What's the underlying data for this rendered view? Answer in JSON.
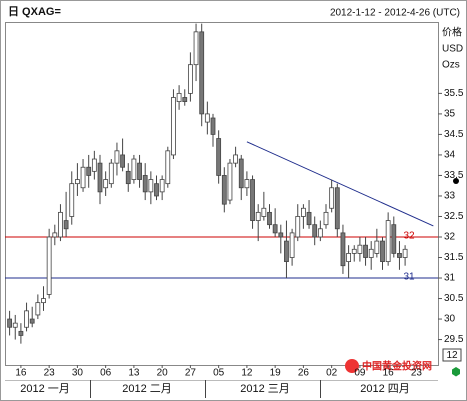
{
  "chart_data": {
    "type": "candlestick",
    "title": "日 QXAG=",
    "date_range": "2012-1-12 - 2012-4-26 (UTC)",
    "y_label": [
      "价格",
      "USD",
      "Ozs"
    ],
    "watermark": "中国黄金投资网",
    "zoom_label": "12",
    "x": [
      "2012-01-12",
      "2012-01-13",
      "2012-01-16",
      "2012-01-17",
      "2012-01-18",
      "2012-01-19",
      "2012-01-20",
      "2012-01-23",
      "2012-01-24",
      "2012-01-25",
      "2012-01-26",
      "2012-01-27",
      "2012-01-30",
      "2012-01-31",
      "2012-02-01",
      "2012-02-02",
      "2012-02-03",
      "2012-02-06",
      "2012-02-07",
      "2012-02-08",
      "2012-02-09",
      "2012-02-10",
      "2012-02-13",
      "2012-02-14",
      "2012-02-15",
      "2012-02-16",
      "2012-02-17",
      "2012-02-20",
      "2012-02-21",
      "2012-02-22",
      "2012-02-23",
      "2012-02-24",
      "2012-02-27",
      "2012-02-28",
      "2012-02-29",
      "2012-03-01",
      "2012-03-02",
      "2012-03-05",
      "2012-03-06",
      "2012-03-07",
      "2012-03-08",
      "2012-03-09",
      "2012-03-12",
      "2012-03-13",
      "2012-03-14",
      "2012-03-15",
      "2012-03-16",
      "2012-03-19",
      "2012-03-20",
      "2012-03-21",
      "2012-03-22",
      "2012-03-23",
      "2012-03-26",
      "2012-03-27",
      "2012-03-28",
      "2012-03-29",
      "2012-03-30",
      "2012-04-02",
      "2012-04-03",
      "2012-04-04",
      "2012-04-05",
      "2012-04-06",
      "2012-04-09",
      "2012-04-10",
      "2012-04-11",
      "2012-04-12",
      "2012-04-13",
      "2012-04-16",
      "2012-04-17",
      "2012-04-18",
      "2012-04-19"
    ],
    "open": [
      30.0,
      29.8,
      29.7,
      29.8,
      30.0,
      30.1,
      30.4,
      30.6,
      32.0,
      32.0,
      32.4,
      32.5,
      33.3,
      33.2,
      33.7,
      33.6,
      33.8,
      33.2,
      33.3,
      33.8,
      34.0,
      33.6,
      33.4,
      33.8,
      33.5,
      33.1,
      33.3,
      33.1,
      33.3,
      34.0,
      35.3,
      35.4,
      35.5,
      36.2,
      37.0,
      34.8,
      34.9,
      34.4,
      33.5,
      32.9,
      33.8,
      33.9,
      33.2,
      33.4,
      32.4,
      32.5,
      32.6,
      32.3,
      32.1,
      31.9,
      31.5,
      32.0,
      32.5,
      32.6,
      32.3,
      32.0,
      32.3,
      32.7,
      33.2,
      32.1,
      31.4,
      31.6,
      31.6,
      31.8,
      31.5,
      31.6,
      31.9,
      31.4,
      32.3,
      31.6,
      31.5
    ],
    "high": [
      30.2,
      30.1,
      29.9,
      30.4,
      30.3,
      30.6,
      30.8,
      32.2,
      32.3,
      32.8,
      33.1,
      33.6,
      33.8,
      33.9,
      34.0,
      34.1,
      34.0,
      33.6,
      33.9,
      34.3,
      34.4,
      33.8,
      34.0,
      34.0,
      33.8,
      33.6,
      33.5,
      33.5,
      34.2,
      35.6,
      35.7,
      35.6,
      36.5,
      37.2,
      37.2,
      35.3,
      35.0,
      34.6,
      33.7,
      33.9,
      34.2,
      34.0,
      33.6,
      33.5,
      32.8,
      33.1,
      32.8,
      32.7,
      32.3,
      32.4,
      32.2,
      32.8,
      32.8,
      32.9,
      32.5,
      32.4,
      32.8,
      33.4,
      33.3,
      32.3,
      31.8,
      31.8,
      32.0,
      32.0,
      31.9,
      32.2,
      32.0,
      32.6,
      32.5,
      31.9,
      31.8
    ],
    "low": [
      29.6,
      29.5,
      29.4,
      29.7,
      29.8,
      30.0,
      30.2,
      30.5,
      31.8,
      31.9,
      32.0,
      32.3,
      33.0,
      33.1,
      33.2,
      33.4,
      32.8,
      33.0,
      33.2,
      33.5,
      33.6,
      33.1,
      33.3,
      33.2,
      32.9,
      32.8,
      32.9,
      32.9,
      33.2,
      33.9,
      35.1,
      35.2,
      35.3,
      35.8,
      34.7,
      34.5,
      34.2,
      33.3,
      32.6,
      32.8,
      33.7,
      32.9,
      33.0,
      32.2,
      31.9,
      32.4,
      32.2,
      32.0,
      31.6,
      31.0,
      31.3,
      31.9,
      32.2,
      32.2,
      31.8,
      31.9,
      32.2,
      32.6,
      32.0,
      31.1,
      31.0,
      31.4,
      31.4,
      31.3,
      31.2,
      31.5,
      31.2,
      31.3,
      31.5,
      31.2,
      31.3
    ],
    "close": [
      29.8,
      29.9,
      29.6,
      30.2,
      29.9,
      30.4,
      30.5,
      32.0,
      32.1,
      32.6,
      32.2,
      33.3,
      33.4,
      33.7,
      33.5,
      33.9,
      33.1,
      33.4,
      33.8,
      34.1,
      33.7,
      33.3,
      33.9,
      33.4,
      33.1,
      33.4,
      33.0,
      33.4,
      34.1,
      35.4,
      35.5,
      35.3,
      36.2,
      37.0,
      35.0,
      35.0,
      34.5,
      33.5,
      32.8,
      33.8,
      34.0,
      33.2,
      33.4,
      32.4,
      32.6,
      32.7,
      32.3,
      32.1,
      32.0,
      31.4,
      32.1,
      32.5,
      32.7,
      32.3,
      32.0,
      32.2,
      32.6,
      33.2,
      32.2,
      31.3,
      31.6,
      31.7,
      31.8,
      31.5,
      31.7,
      31.9,
      31.4,
      32.4,
      31.6,
      31.5,
      31.7
    ],
    "up_color": "#ffffff",
    "down_color": "#777777",
    "ylim": [
      28.88,
      37.24
    ],
    "yticks": [
      29.5,
      30,
      30.5,
      31,
      31.5,
      32,
      32.5,
      33,
      33.5,
      34,
      34.5,
      35,
      35.5
    ],
    "xticks": [
      {
        "value": "2012-01-16",
        "label": "16"
      },
      {
        "value": "2012-01-23",
        "label": "23"
      },
      {
        "value": "2012-01-30",
        "label": "30"
      },
      {
        "value": "2012-02-06",
        "label": "06"
      },
      {
        "value": "2012-02-13",
        "label": "13"
      },
      {
        "value": "2012-02-20",
        "label": "20"
      },
      {
        "value": "2012-02-27",
        "label": "27"
      },
      {
        "value": "2012-03-05",
        "label": "05"
      },
      {
        "value": "2012-03-12",
        "label": "12"
      },
      {
        "value": "2012-03-19",
        "label": "19"
      },
      {
        "value": "2012-03-26",
        "label": "26"
      },
      {
        "value": "2012-04-02",
        "label": "02"
      },
      {
        "value": "2012-04-09",
        "label": "09"
      },
      {
        "value": "2012-04-16",
        "label": "16"
      },
      {
        "value": "2012-04-23",
        "label": "23"
      }
    ],
    "months": [
      "2012 一月",
      "2012 二月",
      "2012 三月",
      "2012 四月"
    ],
    "hlines": [
      {
        "value": 32,
        "color": "#cc0000"
      },
      {
        "value": 31,
        "color": "#1f2d8c"
      }
    ],
    "trendline": {
      "x": [
        "2012-03-12",
        "2012-04-26"
      ],
      "values": [
        34.32,
        32.27
      ],
      "color": "#1f2d8c"
    }
  }
}
